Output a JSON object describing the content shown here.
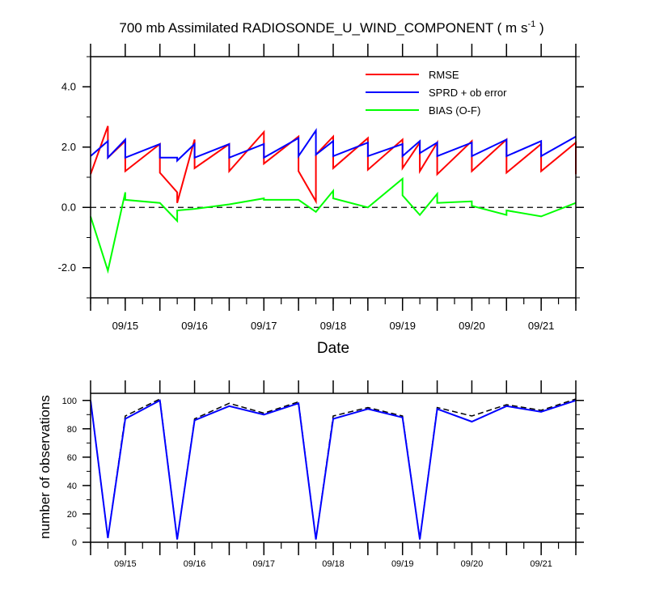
{
  "title": "700 mb Assimilated RADIOSONDE_U_WIND_COMPONENT ( m s",
  "title_units_sup": "-1",
  "title_tail": " )",
  "colors": {
    "rmse": "#ff0000",
    "sprd": "#0000ff",
    "bias": "#00ff00",
    "reference": "#000000"
  },
  "chart_data": [
    {
      "type": "line",
      "xlabel": "Date",
      "ylabel": "",
      "xlim": [
        0,
        7
      ],
      "ylim": [
        -3,
        5
      ],
      "x_tick_labels": [
        "09/15",
        "09/16",
        "09/17",
        "09/18",
        "09/19",
        "09/20",
        "09/21"
      ],
      "y_ticks": [
        -2,
        0,
        2,
        4
      ],
      "y_tick_labels": [
        "-2.0",
        "0.0",
        "2.0",
        "4.0"
      ],
      "reference_line": {
        "y": 0,
        "style": "dashed"
      },
      "legend": {
        "placement": "top-right",
        "entries": [
          "RMSE",
          "SPRD + ob error",
          "BIAS (O-F)"
        ]
      },
      "series": [
        {
          "name": "RMSE",
          "color": "#ff0000",
          "points": [
            [
              0.0,
              1.1
            ],
            [
              0.25,
              2.7
            ],
            [
              0.25,
              1.65
            ],
            [
              0.5,
              2.2
            ],
            [
              0.5,
              1.2
            ],
            [
              1.0,
              2.1
            ],
            [
              1.0,
              1.15
            ],
            [
              1.25,
              0.5
            ],
            [
              1.25,
              0.15
            ],
            [
              1.5,
              2.25
            ],
            [
              1.5,
              1.3
            ],
            [
              2.0,
              2.1
            ],
            [
              2.0,
              1.2
            ],
            [
              2.5,
              2.5
            ],
            [
              2.5,
              1.45
            ],
            [
              3.0,
              2.35
            ],
            [
              3.0,
              1.2
            ],
            [
              3.25,
              0.2
            ],
            [
              3.25,
              1.75
            ],
            [
              3.5,
              2.35
            ],
            [
              3.5,
              1.3
            ],
            [
              4.0,
              2.3
            ],
            [
              4.0,
              1.25
            ],
            [
              4.5,
              2.25
            ],
            [
              4.5,
              1.3
            ],
            [
              4.75,
              2.15
            ],
            [
              4.75,
              1.2
            ],
            [
              5.0,
              2.15
            ],
            [
              5.0,
              1.1
            ],
            [
              5.5,
              2.2
            ],
            [
              5.5,
              1.2
            ],
            [
              6.0,
              2.25
            ],
            [
              6.0,
              1.15
            ],
            [
              6.5,
              2.1
            ],
            [
              6.5,
              1.2
            ],
            [
              7.0,
              2.15
            ],
            [
              7.0,
              1.1
            ]
          ]
        },
        {
          "name": "SPRD + ob error",
          "color": "#0000ff",
          "points": [
            [
              0.0,
              1.7
            ],
            [
              0.25,
              2.2
            ],
            [
              0.25,
              1.65
            ],
            [
              0.5,
              2.25
            ],
            [
              0.5,
              1.65
            ],
            [
              1.0,
              2.1
            ],
            [
              1.0,
              1.65
            ],
            [
              1.25,
              1.65
            ],
            [
              1.25,
              1.55
            ],
            [
              1.5,
              2.1
            ],
            [
              1.5,
              1.65
            ],
            [
              2.0,
              2.1
            ],
            [
              2.0,
              1.65
            ],
            [
              2.5,
              2.1
            ],
            [
              2.5,
              1.65
            ],
            [
              3.0,
              2.3
            ],
            [
              3.0,
              1.7
            ],
            [
              3.25,
              2.55
            ],
            [
              3.25,
              1.75
            ],
            [
              3.5,
              2.2
            ],
            [
              3.5,
              1.7
            ],
            [
              4.0,
              2.15
            ],
            [
              4.0,
              1.7
            ],
            [
              4.5,
              2.1
            ],
            [
              4.5,
              1.7
            ],
            [
              4.75,
              2.2
            ],
            [
              4.75,
              1.8
            ],
            [
              5.0,
              2.15
            ],
            [
              5.0,
              1.7
            ],
            [
              5.5,
              2.15
            ],
            [
              5.5,
              1.7
            ],
            [
              6.0,
              2.25
            ],
            [
              6.0,
              1.7
            ],
            [
              6.5,
              2.2
            ],
            [
              6.5,
              1.7
            ],
            [
              7.0,
              2.35
            ]
          ]
        },
        {
          "name": "BIAS (O-F)",
          "color": "#00ff00",
          "points": [
            [
              0.0,
              -0.3
            ],
            [
              0.25,
              -2.1
            ],
            [
              0.5,
              0.5
            ],
            [
              0.5,
              0.25
            ],
            [
              1.0,
              0.15
            ],
            [
              1.25,
              -0.45
            ],
            [
              1.25,
              -0.1
            ],
            [
              1.5,
              -0.05
            ],
            [
              2.0,
              0.1
            ],
            [
              2.5,
              0.3
            ],
            [
              2.5,
              0.25
            ],
            [
              3.0,
              0.25
            ],
            [
              3.25,
              -0.15
            ],
            [
              3.5,
              0.55
            ],
            [
              3.5,
              0.3
            ],
            [
              4.0,
              0.0
            ],
            [
              4.5,
              0.95
            ],
            [
              4.5,
              0.4
            ],
            [
              4.75,
              -0.25
            ],
            [
              5.0,
              0.45
            ],
            [
              5.0,
              0.15
            ],
            [
              5.5,
              0.2
            ],
            [
              5.5,
              0.05
            ],
            [
              6.0,
              -0.25
            ],
            [
              6.0,
              -0.1
            ],
            [
              6.5,
              -0.3
            ],
            [
              7.0,
              0.15
            ]
          ]
        }
      ]
    },
    {
      "type": "line",
      "xlabel": "",
      "ylabel": "number of observations",
      "xlim": [
        0,
        7
      ],
      "ylim": [
        0,
        105
      ],
      "x_tick_labels": [
        "09/15",
        "09/16",
        "09/17",
        "09/18",
        "09/19",
        "09/20",
        "09/21"
      ],
      "y_ticks": [
        0,
        20,
        40,
        60,
        80,
        100
      ],
      "y_tick_labels": [
        "0",
        "20",
        "40",
        "60",
        "80",
        "100"
      ],
      "series": [
        {
          "style": "dashed",
          "color": "#000000",
          "points": [
            [
              0.0,
              100
            ],
            [
              0.25,
              3
            ],
            [
              0.5,
              89
            ],
            [
              1.0,
              101
            ],
            [
              1.25,
              2
            ],
            [
              1.5,
              87
            ],
            [
              2.0,
              98
            ],
            [
              2.5,
              91
            ],
            [
              3.0,
              99
            ],
            [
              3.25,
              2
            ],
            [
              3.5,
              89
            ],
            [
              4.0,
              95
            ],
            [
              4.5,
              89
            ],
            [
              4.75,
              2
            ],
            [
              5.0,
              95
            ],
            [
              5.5,
              89
            ],
            [
              6.0,
              97
            ],
            [
              6.5,
              93
            ],
            [
              7.0,
              101
            ]
          ]
        },
        {
          "style": "solid",
          "color": "#0000ff",
          "points": [
            [
              0.0,
              100
            ],
            [
              0.25,
              3
            ],
            [
              0.5,
              87
            ],
            [
              1.0,
              100
            ],
            [
              1.25,
              2
            ],
            [
              1.5,
              86
            ],
            [
              2.0,
              96
            ],
            [
              2.5,
              90
            ],
            [
              3.0,
              98
            ],
            [
              3.25,
              2
            ],
            [
              3.5,
              87
            ],
            [
              4.0,
              94
            ],
            [
              4.5,
              88
            ],
            [
              4.75,
              2
            ],
            [
              5.0,
              94
            ],
            [
              5.5,
              85
            ],
            [
              6.0,
              96
            ],
            [
              6.5,
              92
            ],
            [
              7.0,
              100
            ]
          ]
        }
      ]
    }
  ]
}
